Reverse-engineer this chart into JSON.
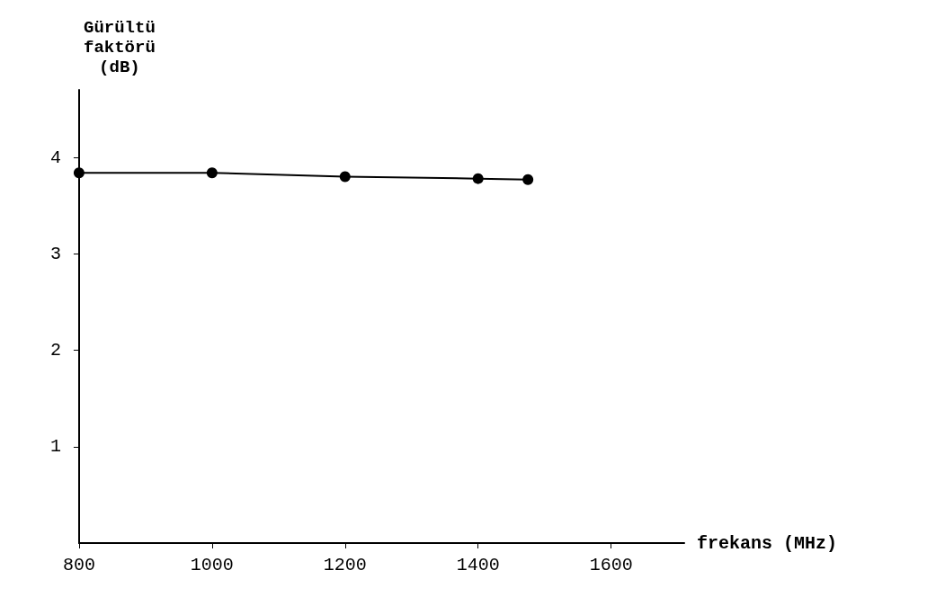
{
  "chart_data": {
    "type": "line",
    "xlabel": "frekans (MHz)",
    "ylabel": "Gürültü\nfaktörü\n(dB)",
    "x": [
      800,
      1000,
      1200,
      1400,
      1475
    ],
    "values": [
      3.84,
      3.84,
      3.8,
      3.78,
      3.77
    ],
    "color": "#000000",
    "marker": "circle",
    "line_style": "solid",
    "grid": false,
    "xlim": [
      800,
      1710
    ],
    "xticks": [
      800,
      1000,
      1200,
      1400,
      1600
    ],
    "ylim": [
      0,
      4.7
    ],
    "yticks": [
      1,
      2,
      3,
      4
    ]
  }
}
